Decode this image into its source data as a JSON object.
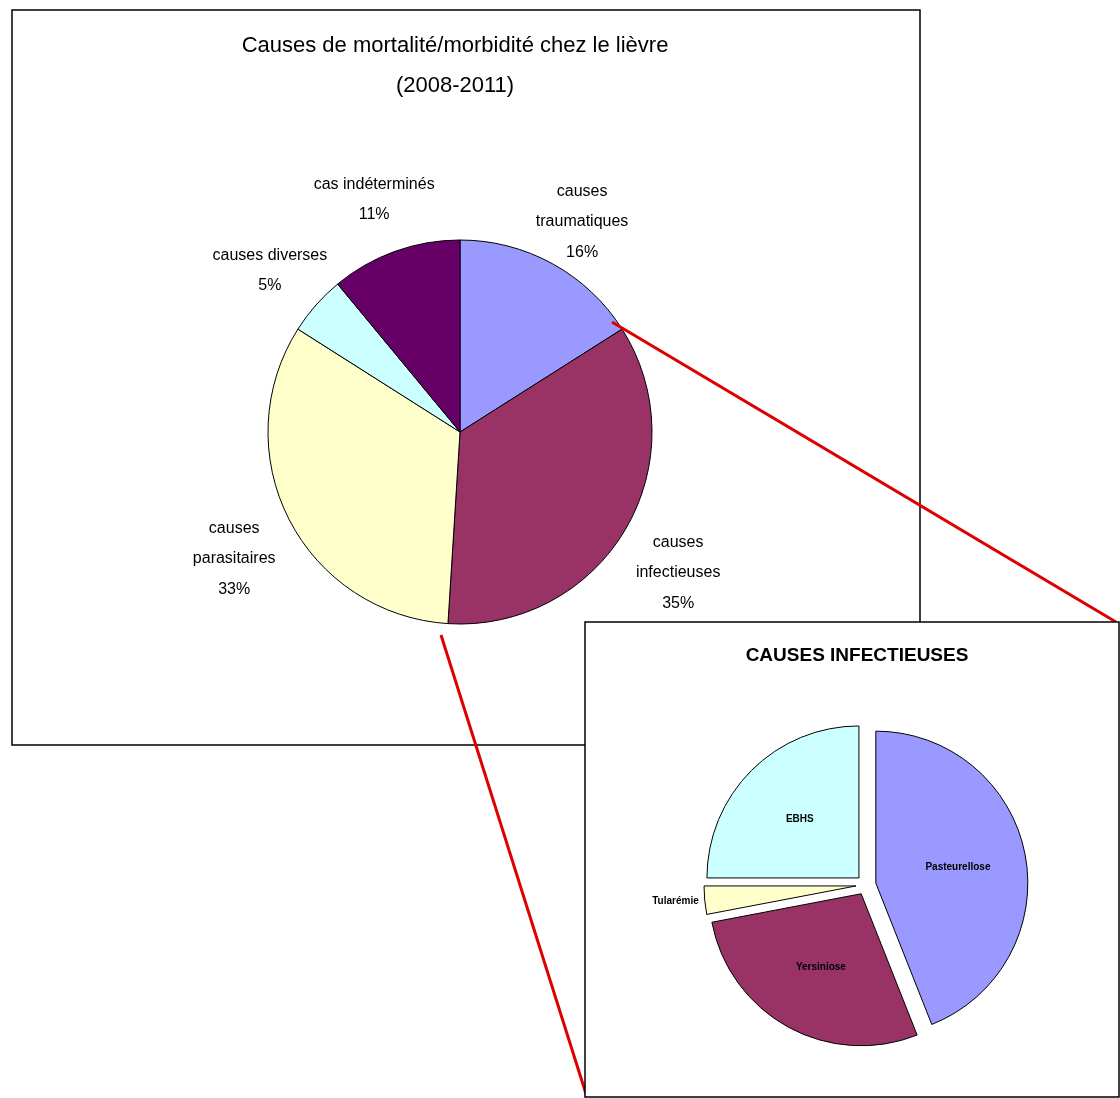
{
  "chart_data": [
    {
      "type": "pie",
      "title": "Causes de mortalité/morbidité chez le lièvre",
      "subtitle": "(2008-2011)",
      "categories": [
        "causes traumatiques",
        "causes infectieuses",
        "causes parasitaires",
        "causes diverses",
        "cas indéterminés"
      ],
      "values": [
        16,
        35,
        33,
        5,
        11
      ],
      "value_labels": [
        "16%",
        "35%",
        "33%",
        "5%",
        "11%"
      ],
      "colors": [
        "#9999ff",
        "#993366",
        "#ffffcc",
        "#ccffff",
        "#660066"
      ]
    },
    {
      "type": "pie",
      "title": "CAUSES INFECTIEUSES",
      "categories": [
        "Pasteurellose",
        "Yersiniose",
        "Tularémie",
        "EBHS"
      ],
      "values": [
        44,
        28,
        3,
        25
      ],
      "colors": [
        "#9999ff",
        "#993366",
        "#ffffcc",
        "#ccffff"
      ]
    }
  ]
}
